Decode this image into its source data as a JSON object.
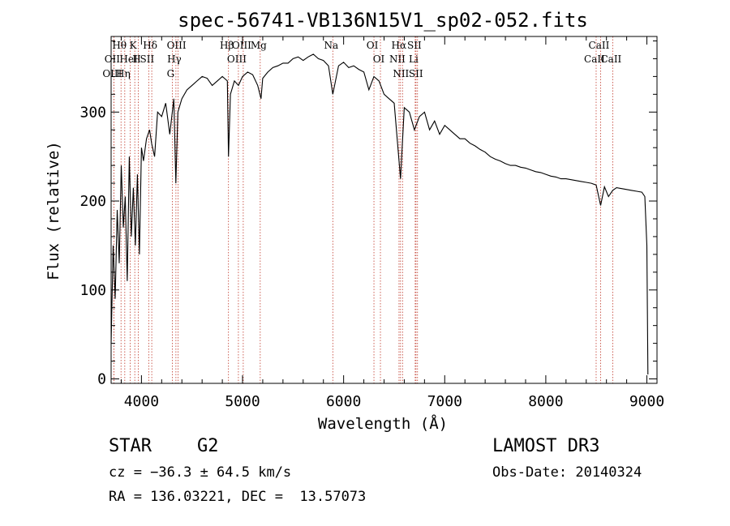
{
  "chart_data": {
    "type": "line",
    "title": "spec-56741-VB136N15V1_sp02-052.fits",
    "xlabel": "Wavelength (Å)",
    "ylabel": "Flux (relative)",
    "xlim": [
      3700,
      9100
    ],
    "ylim": [
      -5,
      385
    ],
    "xticks": [
      4000,
      5000,
      6000,
      7000,
      8000,
      9000
    ],
    "yticks": [
      0,
      100,
      200,
      300
    ],
    "series": [
      {
        "name": "flux",
        "x": [
          3700,
          3720,
          3740,
          3760,
          3780,
          3800,
          3820,
          3840,
          3860,
          3880,
          3900,
          3920,
          3940,
          3960,
          3980,
          4000,
          4020,
          4050,
          4080,
          4100,
          4130,
          4160,
          4200,
          4240,
          4280,
          4320,
          4340,
          4360,
          4400,
          4450,
          4500,
          4550,
          4600,
          4650,
          4700,
          4750,
          4800,
          4850,
          4861,
          4880,
          4920,
          4960,
          5000,
          5050,
          5100,
          5150,
          5183,
          5200,
          5250,
          5300,
          5350,
          5400,
          5450,
          5500,
          5550,
          5600,
          5650,
          5700,
          5750,
          5800,
          5850,
          5893,
          5950,
          6000,
          6050,
          6100,
          6150,
          6200,
          6250,
          6300,
          6350,
          6400,
          6450,
          6500,
          6563,
          6600,
          6650,
          6700,
          6750,
          6800,
          6850,
          6900,
          6950,
          7000,
          7050,
          7100,
          7150,
          7200,
          7250,
          7300,
          7350,
          7400,
          7450,
          7500,
          7550,
          7600,
          7650,
          7700,
          7750,
          7800,
          7850,
          7900,
          7950,
          8000,
          8050,
          8100,
          8150,
          8200,
          8250,
          8300,
          8350,
          8400,
          8450,
          8498,
          8542,
          8580,
          8620,
          8662,
          8700,
          8750,
          8800,
          8850,
          8900,
          8950,
          8980,
          9000,
          9010
        ],
        "values": [
          40,
          150,
          90,
          190,
          130,
          240,
          170,
          205,
          110,
          250,
          160,
          215,
          150,
          230,
          140,
          260,
          245,
          270,
          280,
          265,
          250,
          300,
          295,
          310,
          275,
          315,
          220,
          300,
          315,
          325,
          330,
          335,
          340,
          338,
          330,
          335,
          340,
          335,
          250,
          320,
          335,
          330,
          340,
          345,
          342,
          330,
          315,
          338,
          345,
          350,
          352,
          355,
          355,
          360,
          362,
          358,
          362,
          365,
          360,
          358,
          352,
          320,
          352,
          356,
          350,
          352,
          348,
          345,
          325,
          340,
          335,
          320,
          315,
          310,
          225,
          305,
          300,
          280,
          295,
          300,
          280,
          290,
          275,
          285,
          280,
          275,
          270,
          270,
          265,
          262,
          258,
          255,
          250,
          247,
          245,
          242,
          240,
          240,
          238,
          237,
          235,
          233,
          232,
          230,
          228,
          227,
          225,
          225,
          224,
          223,
          222,
          221,
          220,
          218,
          195,
          216,
          205,
          212,
          215,
          214,
          213,
          212,
          211,
          210,
          205,
          150,
          5
        ]
      }
    ],
    "lines": [
      {
        "label": "Hθ",
        "wavelength": 3798
      },
      {
        "label": "OII",
        "wavelength": 3727
      },
      {
        "label": "OIII",
        "wavelength": 3727
      },
      {
        "label": "K",
        "wavelength": 3934
      },
      {
        "label": "HeI",
        "wavelength": 3889
      },
      {
        "label": "Hη",
        "wavelength": 3835
      },
      {
        "label": "Hδ",
        "wavelength": 4102
      },
      {
        "label": "SII",
        "wavelength": 4072
      },
      {
        "label": "H",
        "wavelength": 3969
      },
      {
        "label": "OIII",
        "wavelength": 4363
      },
      {
        "label": "Hγ",
        "wavelength": 4341
      },
      {
        "label": "G",
        "wavelength": 4305
      },
      {
        "label": "OIII",
        "wavelength": 5007
      },
      {
        "label": "OIII",
        "wavelength": 4959
      },
      {
        "label": "Hβ",
        "wavelength": 4861
      },
      {
        "label": "Mg",
        "wavelength": 5175
      },
      {
        "label": "Na",
        "wavelength": 5893
      },
      {
        "label": "OI",
        "wavelength": 6300
      },
      {
        "label": "OI",
        "wavelength": 6364
      },
      {
        "label": "Hα",
        "wavelength": 6563
      },
      {
        "label": "NII",
        "wavelength": 6548
      },
      {
        "label": "NII",
        "wavelength": 6583
      },
      {
        "label": "SII",
        "wavelength": 6716
      },
      {
        "label": "Li",
        "wavelength": 6708
      },
      {
        "label": "SII",
        "wavelength": 6731
      },
      {
        "label": "CaII",
        "wavelength": 8542
      },
      {
        "label": "CaII",
        "wavelength": 8498
      },
      {
        "label": "CaII",
        "wavelength": 8662
      }
    ]
  },
  "info": {
    "object_class": "STAR",
    "subclass": "G2",
    "survey": "LAMOST DR3",
    "redshift_line": "cz = −36.3 ± 64.5 km/s",
    "obs_date_line": "Obs-Date: 20140324",
    "coords_line": "RA = 136.03221, DEC =  13.57073"
  }
}
